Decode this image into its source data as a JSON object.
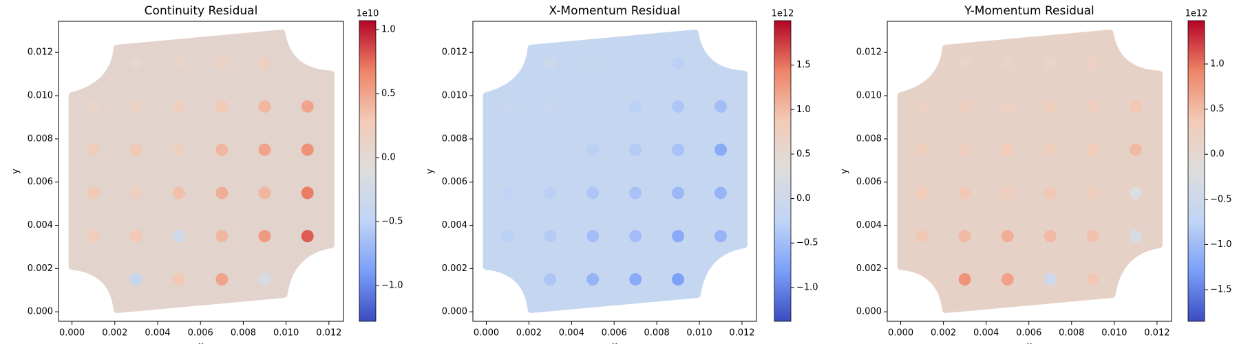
{
  "chart_data": [
    {
      "type": "scatter",
      "title": "Continuity Residual",
      "xlabel": "x",
      "ylabel": "y",
      "x": [
        0.003,
        0.005,
        0.007,
        0.009,
        0.001,
        0.003,
        0.005,
        0.007,
        0.009,
        0.011,
        0.001,
        0.003,
        0.005,
        0.007,
        0.009,
        0.011,
        0.001,
        0.003,
        0.005,
        0.007,
        0.009,
        0.011,
        0.001,
        0.003,
        0.005,
        0.007,
        0.009,
        0.011,
        0.003,
        0.005,
        0.007,
        0.009
      ],
      "y": [
        0.0115,
        0.0115,
        0.0115,
        0.0115,
        0.0095,
        0.0095,
        0.0095,
        0.0095,
        0.0095,
        0.0095,
        0.0075,
        0.0075,
        0.0075,
        0.0075,
        0.0075,
        0.0075,
        0.0055,
        0.0055,
        0.0055,
        0.0055,
        0.0055,
        0.0055,
        0.0035,
        0.0035,
        0.0035,
        0.0035,
        0.0035,
        0.0035,
        0.0015,
        0.0015,
        0.0015,
        0.0015
      ],
      "values": [
        0.05,
        0.1,
        0.15,
        0.2,
        0.1,
        0.15,
        0.2,
        0.3,
        0.4,
        0.5,
        0.25,
        0.3,
        0.2,
        0.4,
        0.5,
        0.6,
        0.3,
        0.2,
        0.35,
        0.45,
        0.4,
        0.7,
        0.25,
        0.3,
        -0.3,
        0.4,
        0.55,
        0.8,
        -0.4,
        0.3,
        0.5,
        -0.2
      ],
      "xlim": [
        -0.00063,
        0.01268
      ],
      "ylim": [
        -0.00044,
        0.01344
      ],
      "xticks": [
        {
          "value": 0,
          "label": "0.000"
        },
        {
          "value": 0.002,
          "label": "0.002"
        },
        {
          "value": 0.004,
          "label": "0.004"
        },
        {
          "value": 0.006,
          "label": "0.006"
        },
        {
          "value": 0.008,
          "label": "0.008"
        },
        {
          "value": 0.01,
          "label": "0.010"
        },
        {
          "value": 0.012,
          "label": "0.012"
        }
      ],
      "yticks": [
        {
          "value": 0,
          "label": "0.000"
        },
        {
          "value": 0.002,
          "label": "0.002"
        },
        {
          "value": 0.004,
          "label": "0.004"
        },
        {
          "value": 0.006,
          "label": "0.006"
        },
        {
          "value": 0.008,
          "label": "0.008"
        },
        {
          "value": 0.01,
          "label": "0.010"
        },
        {
          "value": 0.012,
          "label": "0.012"
        }
      ],
      "colormap": [
        "#3b4cc0",
        "#7b9ff9",
        "#c0d4f5",
        "#dddddd",
        "#f2cbb7",
        "#ee8468",
        "#b40426"
      ],
      "domain_color": "#e2d3cd",
      "colorbar": {
        "clim": [
          -1.28,
          1.07
        ],
        "offset": "1e10",
        "ticks": [
          {
            "value": -1,
            "label": "−1.0"
          },
          {
            "value": -0.5,
            "label": "−0.5"
          },
          {
            "value": 0,
            "label": "0.0"
          },
          0.5,
          {
            "value": 1,
            "label": "1.0"
          }
        ]
      }
    },
    {
      "type": "scatter",
      "title": "X-Momentum Residual",
      "xlabel": "x",
      "ylabel": "y",
      "x": [
        0.003,
        0.005,
        0.007,
        0.009,
        0.001,
        0.003,
        0.005,
        0.007,
        0.009,
        0.011,
        0.001,
        0.003,
        0.005,
        0.007,
        0.009,
        0.011,
        0.001,
        0.003,
        0.005,
        0.007,
        0.009,
        0.011,
        0.001,
        0.003,
        0.005,
        0.007,
        0.009,
        0.011,
        0.003,
        0.005,
        0.007,
        0.009
      ],
      "y": [
        0.0115,
        0.0115,
        0.0115,
        0.0115,
        0.0095,
        0.0095,
        0.0095,
        0.0095,
        0.0095,
        0.0095,
        0.0075,
        0.0075,
        0.0075,
        0.0075,
        0.0075,
        0.0075,
        0.0055,
        0.0055,
        0.0055,
        0.0055,
        0.0055,
        0.0055,
        0.0035,
        0.0035,
        0.0035,
        0.0035,
        0.0035,
        0.0035,
        0.0015,
        0.0015,
        0.0015,
        0.0015
      ],
      "values": [
        0.0,
        -0.1,
        -0.2,
        -0.3,
        -0.1,
        -0.1,
        -0.2,
        -0.3,
        -0.4,
        -0.5,
        -0.2,
        -0.2,
        -0.3,
        -0.35,
        -0.45,
        -0.7,
        -0.25,
        -0.3,
        -0.4,
        -0.45,
        -0.55,
        -0.6,
        -0.3,
        -0.35,
        -0.5,
        -0.5,
        -0.7,
        -0.6,
        -0.4,
        -0.6,
        -0.7,
        -0.8
      ],
      "xlim": [
        -0.00063,
        0.01268
      ],
      "ylim": [
        -0.00044,
        0.01344
      ],
      "xticks": [
        {
          "value": 0,
          "label": "0.000"
        },
        {
          "value": 0.002,
          "label": "0.002"
        },
        {
          "value": 0.004,
          "label": "0.004"
        },
        {
          "value": 0.006,
          "label": "0.006"
        },
        {
          "value": 0.008,
          "label": "0.008"
        },
        {
          "value": 0.01,
          "label": "0.010"
        },
        {
          "value": 0.012,
          "label": "0.012"
        }
      ],
      "yticks": [
        {
          "value": 0,
          "label": "0.000"
        },
        {
          "value": 0.002,
          "label": "0.002"
        },
        {
          "value": 0.004,
          "label": "0.004"
        },
        {
          "value": 0.006,
          "label": "0.006"
        },
        {
          "value": 0.008,
          "label": "0.008"
        },
        {
          "value": 0.01,
          "label": "0.010"
        },
        {
          "value": 0.012,
          "label": "0.012"
        }
      ],
      "colormap": [
        "#3b4cc0",
        "#7b9ff9",
        "#c0d4f5",
        "#dddddd",
        "#f2cbb7",
        "#ee8468",
        "#b40426"
      ],
      "domain_color": "#c5d6f1",
      "colorbar": {
        "clim": [
          -1.38,
          2.0
        ],
        "offset": "1e12",
        "ticks": [
          {
            "value": -1,
            "label": "−1.0"
          },
          {
            "value": -0.5,
            "label": "−0.5"
          },
          {
            "value": 0,
            "label": "0.0"
          },
          0.5,
          {
            "value": 1,
            "label": "1.0"
          },
          1.5
        ]
      }
    },
    {
      "type": "scatter",
      "title": "Y-Momentum Residual",
      "xlabel": "x",
      "ylabel": "y",
      "x": [
        0.003,
        0.005,
        0.007,
        0.009,
        0.001,
        0.003,
        0.005,
        0.007,
        0.009,
        0.011,
        0.001,
        0.003,
        0.005,
        0.007,
        0.009,
        0.011,
        0.001,
        0.003,
        0.005,
        0.007,
        0.009,
        0.011,
        0.001,
        0.003,
        0.005,
        0.007,
        0.009,
        0.011,
        0.003,
        0.005,
        0.007,
        0.009
      ],
      "y": [
        0.0115,
        0.0115,
        0.0115,
        0.0115,
        0.0095,
        0.0095,
        0.0095,
        0.0095,
        0.0095,
        0.0095,
        0.0075,
        0.0075,
        0.0075,
        0.0075,
        0.0075,
        0.0075,
        0.0055,
        0.0055,
        0.0055,
        0.0055,
        0.0055,
        0.0055,
        0.0035,
        0.0035,
        0.0035,
        0.0035,
        0.0035,
        0.0035,
        0.0015,
        0.0015,
        0.0015,
        0.0015
      ],
      "values": [
        0.1,
        0.15,
        0.1,
        0.2,
        0.2,
        0.25,
        0.2,
        0.3,
        0.3,
        0.4,
        0.3,
        0.3,
        0.35,
        0.3,
        0.35,
        0.5,
        0.35,
        0.4,
        0.3,
        0.4,
        0.3,
        -0.2,
        0.4,
        0.5,
        0.6,
        0.5,
        0.45,
        -0.3,
        0.8,
        0.7,
        -0.5,
        0.4
      ],
      "xlim": [
        -0.00063,
        0.01268
      ],
      "ylim": [
        -0.00044,
        0.01344
      ],
      "xticks": [
        {
          "value": 0,
          "label": "0.000"
        },
        {
          "value": 0.002,
          "label": "0.002"
        },
        {
          "value": 0.004,
          "label": "0.004"
        },
        {
          "value": 0.006,
          "label": "0.006"
        },
        {
          "value": 0.008,
          "label": "0.008"
        },
        {
          "value": 0.01,
          "label": "0.010"
        },
        {
          "value": 0.012,
          "label": "0.012"
        }
      ],
      "yticks": [
        {
          "value": 0,
          "label": "0.000"
        },
        {
          "value": 0.002,
          "label": "0.002"
        },
        {
          "value": 0.004,
          "label": "0.004"
        },
        {
          "value": 0.006,
          "label": "0.006"
        },
        {
          "value": 0.008,
          "label": "0.008"
        },
        {
          "value": 0.01,
          "label": "0.010"
        },
        {
          "value": 0.012,
          "label": "0.012"
        }
      ],
      "colormap": [
        "#3b4cc0",
        "#7b9ff9",
        "#c0d4f5",
        "#dddddd",
        "#f2cbb7",
        "#ee8468",
        "#b40426"
      ],
      "domain_color": "#e6d1c7",
      "colorbar": {
        "clim": [
          -1.85,
          1.48
        ],
        "offset": "1e12",
        "ticks": [
          {
            "value": -1.5,
            "label": "−1.5"
          },
          {
            "value": -1,
            "label": "−1.0"
          },
          {
            "value": -0.5,
            "label": "−0.5"
          },
          {
            "value": 0,
            "label": "0.0"
          },
          0.5,
          {
            "value": 1,
            "label": "1.0"
          }
        ]
      }
    }
  ]
}
